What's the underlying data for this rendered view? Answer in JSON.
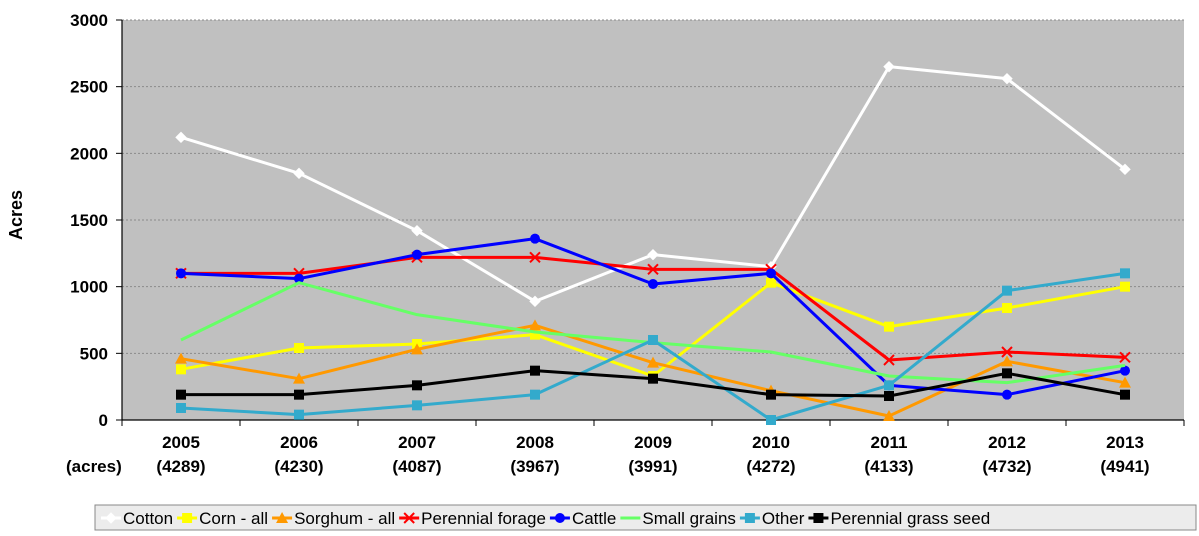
{
  "chart_data": {
    "type": "line",
    "title": "",
    "ylabel": "Acres",
    "xlabel": "",
    "x_prefix_label": "(acres)",
    "ylim": [
      0,
      3000
    ],
    "yticks": [
      0,
      500,
      1000,
      1500,
      2000,
      2500,
      3000
    ],
    "grid": true,
    "plot_background": "#c0c0c0",
    "legend_position": "bottom",
    "categories": [
      "2005",
      "2006",
      "2007",
      "2008",
      "2009",
      "2010",
      "2011",
      "2012",
      "2013"
    ],
    "category_sublabels": [
      "(4289)",
      "(4230)",
      "(4087)",
      "(3967)",
      "(3991)",
      "(4272)",
      "(4133)",
      "(4732)",
      "(4941)"
    ],
    "series": [
      {
        "name": "Cotton",
        "color": "#ffffff",
        "marker": "diamond",
        "values": [
          2120,
          1850,
          1420,
          890,
          1240,
          1150,
          2650,
          2560,
          1880
        ]
      },
      {
        "name": "Corn - all",
        "color": "#ffff00",
        "marker": "square",
        "values": [
          380,
          540,
          570,
          640,
          330,
          1030,
          700,
          840,
          1000
        ]
      },
      {
        "name": "Sorghum - all",
        "color": "#ff9900",
        "marker": "triangle",
        "values": [
          460,
          310,
          530,
          710,
          430,
          220,
          30,
          440,
          280
        ]
      },
      {
        "name": "Perennial forage",
        "color": "#ff0000",
        "marker": "x",
        "values": [
          1100,
          1100,
          1220,
          1220,
          1130,
          1130,
          450,
          510,
          470
        ]
      },
      {
        "name": "Cattle",
        "color": "#0000ff",
        "marker": "circle",
        "values": [
          1100,
          1060,
          1240,
          1360,
          1020,
          1100,
          260,
          190,
          370
        ]
      },
      {
        "name": "Small grains",
        "color": "#66ff66",
        "marker": "none",
        "values": [
          600,
          1030,
          790,
          660,
          580,
          510,
          330,
          280,
          410
        ]
      },
      {
        "name": "Other",
        "color": "#33aacc",
        "marker": "square",
        "values": [
          90,
          40,
          110,
          190,
          600,
          0,
          260,
          970,
          1100
        ]
      },
      {
        "name": "Perennial grass seed",
        "color": "#000000",
        "marker": "square",
        "values": [
          190,
          190,
          260,
          370,
          310,
          190,
          180,
          350,
          190
        ]
      }
    ]
  }
}
